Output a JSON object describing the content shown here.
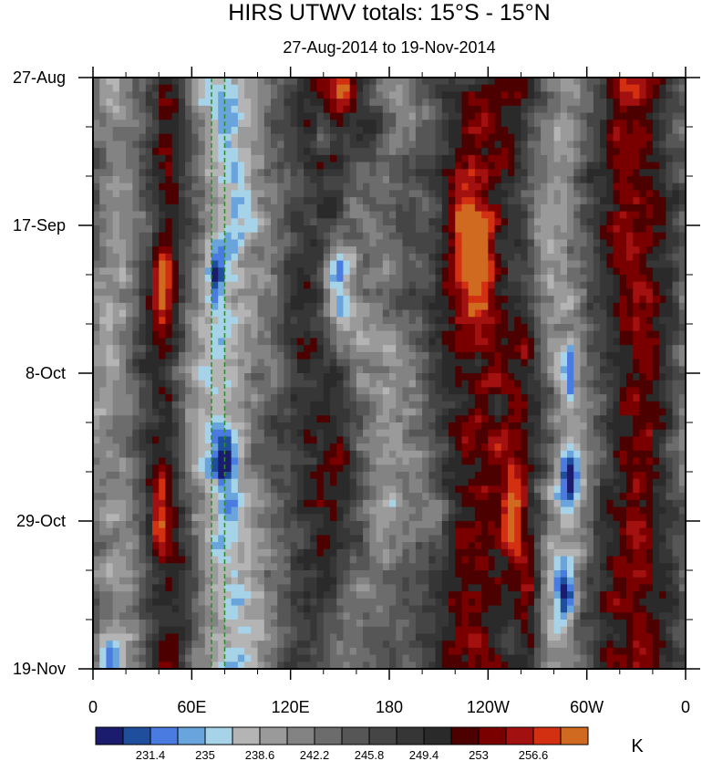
{
  "chart_data": {
    "type": "heatmap",
    "title": "HIRS UTWV totals: 15°S - 15°N",
    "subtitle": "27-Aug-2014 to 19-Nov-2014",
    "xlabel": "",
    "ylabel": "",
    "x_ticks": [
      "0",
      "60E",
      "120E",
      "180",
      "120W",
      "60W",
      "0"
    ],
    "x_tick_values": [
      0,
      60,
      120,
      180,
      240,
      300,
      360
    ],
    "xlim": [
      0,
      360
    ],
    "y_ticks": [
      "27-Aug",
      "17-Sep",
      "8-Oct",
      "29-Oct",
      "19-Nov"
    ],
    "y_tick_values": [
      0,
      21,
      42,
      63,
      84
    ],
    "ylim": [
      0,
      84
    ],
    "colorbar": {
      "unit": "K",
      "labels": [
        "231.4",
        "235",
        "238.6",
        "242.2",
        "245.8",
        "249.4",
        "253",
        "256.6"
      ],
      "label_values": [
        231.4,
        235,
        238.6,
        242.2,
        245.8,
        249.4,
        253,
        256.6
      ],
      "levels": [
        229.6,
        231.4,
        233.2,
        235,
        236.8,
        238.6,
        240.4,
        242.2,
        244,
        245.8,
        247.6,
        249.4,
        251.2,
        253,
        254.8,
        256.6,
        258.4
      ],
      "colors": [
        "#1c1c6e",
        "#1f4f9c",
        "#4a7be0",
        "#6aa4dc",
        "#a6d3e8",
        "#b4b4b4",
        "#9a9a9a",
        "#838383",
        "#6c6c6c",
        "#565656",
        "#454545",
        "#363636",
        "#2a2a2a",
        "#4d0000",
        "#7a0000",
        "#a21010",
        "#d23010",
        "#d06a20"
      ]
    },
    "reference_lines": {
      "style": "dashed",
      "color": "#2e8b2e",
      "lon_values": [
        72,
        80
      ]
    },
    "bands": [
      {
        "lon": 12,
        "width": 14,
        "amp": -8,
        "drift": 4
      },
      {
        "lon": 75,
        "width": 14,
        "amp": -10,
        "drift": 6
      },
      {
        "lon": 100,
        "width": 18,
        "amp": -5,
        "drift": 4
      },
      {
        "lon": 165,
        "width": 18,
        "amp": -6,
        "drift": 10
      },
      {
        "lon": 195,
        "width": 16,
        "amp": -4,
        "drift": 4
      },
      {
        "lon": 285,
        "width": 14,
        "amp": -9,
        "drift": 6
      },
      {
        "lon": 45,
        "width": 7,
        "amp": 4,
        "drift": 2
      },
      {
        "lon": 140,
        "width": 14,
        "amp": 4,
        "drift": 4
      },
      {
        "lon": 235,
        "width": 20,
        "amp": 5,
        "drift": 8
      },
      {
        "lon": 330,
        "width": 14,
        "amp": 5,
        "drift": 4
      }
    ],
    "features": [
      {
        "lon": 152,
        "t": 2,
        "rl": 5,
        "rt": 2,
        "amp": 9
      },
      {
        "lon": 168,
        "t": 7,
        "rl": 8,
        "rt": 3,
        "amp": 8
      },
      {
        "lon": 230,
        "t": 25,
        "rl": 8,
        "rt": 6,
        "amp": 11
      },
      {
        "lon": 42,
        "t": 30,
        "rl": 4,
        "rt": 4,
        "amp": 9
      },
      {
        "lon": 40,
        "t": 62,
        "rl": 4,
        "rt": 4,
        "amp": 10
      },
      {
        "lon": 255,
        "t": 62,
        "rl": 5,
        "rt": 4,
        "amp": 9
      },
      {
        "lon": 265,
        "t": 75,
        "rl": 6,
        "rt": 7,
        "amp": 9
      },
      {
        "lon": 325,
        "t": 1,
        "rl": 8,
        "rt": 2,
        "amp": 6
      },
      {
        "lon": 262,
        "t": 39,
        "rl": 4,
        "rt": 2,
        "amp": 7
      },
      {
        "lon": 148,
        "t": 27,
        "rl": 6,
        "rt": 3,
        "amp": -10
      },
      {
        "lon": 150,
        "t": 34,
        "rl": 5,
        "rt": 3,
        "amp": -9
      },
      {
        "lon": 80,
        "t": 54,
        "rl": 5,
        "rt": 3,
        "amp": -11
      },
      {
        "lon": 75,
        "t": 28,
        "rl": 3,
        "rt": 2,
        "amp": -10
      },
      {
        "lon": 290,
        "t": 57,
        "rl": 4,
        "rt": 3,
        "amp": -13
      },
      {
        "lon": 287,
        "t": 73,
        "rl": 4,
        "rt": 3,
        "amp": -11
      },
      {
        "lon": 140,
        "t": 8,
        "rl": 4,
        "rt": 2,
        "amp": -10
      },
      {
        "lon": 10,
        "t": 83,
        "rl": 6,
        "rt": 2,
        "amp": -11
      },
      {
        "lon": 290,
        "t": 42,
        "rl": 3,
        "rt": 3,
        "amp": -9
      },
      {
        "lon": 210,
        "t": 62,
        "rl": 5,
        "rt": 2,
        "amp": -8
      }
    ]
  }
}
